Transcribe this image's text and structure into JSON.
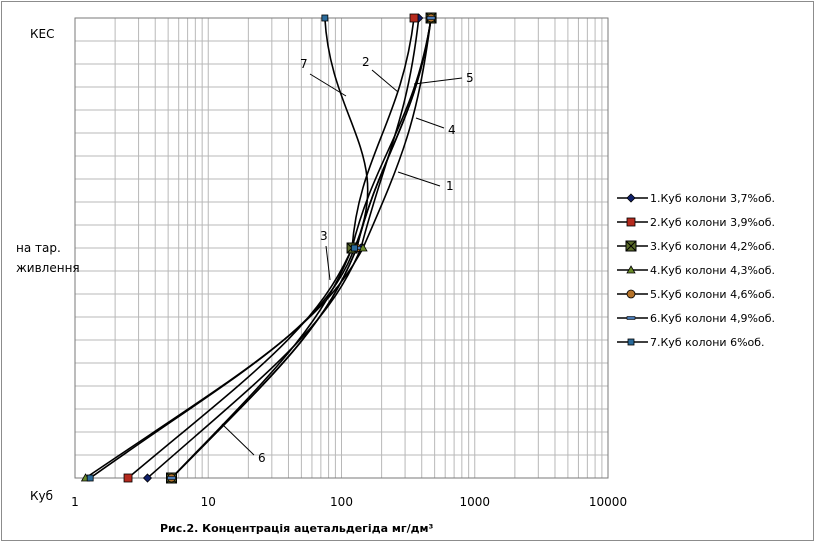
{
  "chart_data": {
    "type": "line",
    "title": "Рис.2. Концентрація ацетальдегіда мг/дм³",
    "xscale": "log",
    "xlim": [
      1,
      10000
    ],
    "x_ticks": [
      "1",
      "10",
      "100",
      "1000",
      "10000"
    ],
    "y_categories": [
      "Куб",
      "на тар. живлення",
      "КЕС"
    ],
    "y_top_label": "КЕС",
    "y_mid_label_line1": "на тар.",
    "y_mid_label_line2": "живлення",
    "y_bottom_label": "Куб",
    "grid": true,
    "legend_position": "right",
    "series": [
      {
        "name": "1.Куб колони 3,7%об.",
        "marker": "diamond",
        "color": "#000000",
        "fill": "#10206b",
        "annotation": "1",
        "x": [
          3.5,
          140,
          380
        ]
      },
      {
        "name": "2.Куб колони 3,9%об.",
        "marker": "square",
        "color": "#000000",
        "fill": "#b52a1e",
        "annotation": "2",
        "x": [
          2.5,
          120,
          350
        ]
      },
      {
        "name": "3.Куб колони 4,2%об.",
        "marker": "square-x",
        "color": "#000000",
        "fill": "#5a6b2a",
        "annotation": "3",
        "x": [
          5.3,
          120,
          470
        ]
      },
      {
        "name": "4.Куб колони 4,3%об.",
        "marker": "triangle",
        "color": "#000000",
        "fill": "#6a8a2a",
        "annotation": "4",
        "x": [
          1.2,
          145,
          470
        ]
      },
      {
        "name": "5.Куб колони 4,6%об.",
        "marker": "circle",
        "color": "#000000",
        "fill": "#b5732a",
        "annotation": "5",
        "x": [
          5.3,
          130,
          470
        ]
      },
      {
        "name": "6.Куб колони 4,9%об.",
        "marker": "dash",
        "color": "#000000",
        "fill": "#4a7ab5",
        "annotation": "6",
        "x": [
          5.3,
          130,
          470
        ]
      },
      {
        "name": "7.Куб колони 6%об.",
        "marker": "square-small",
        "color": "#000000",
        "fill": "#2a6a9a",
        "annotation": "7",
        "x": [
          1.3,
          125,
          75
        ]
      }
    ]
  }
}
